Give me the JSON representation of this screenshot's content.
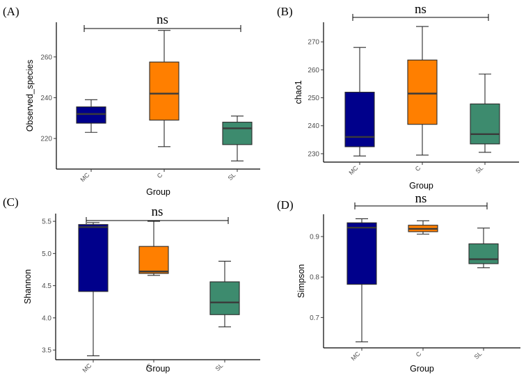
{
  "colors": {
    "MC": "#00008b",
    "C": "#ff7f00",
    "SL": "#3d8b6e"
  },
  "chart_data": [
    {
      "type": "box",
      "panel": "(A)",
      "ylabel": "Observed_species",
      "xlabel": "Group",
      "ylim": [
        205,
        277
      ],
      "yticks": [
        220,
        240,
        260
      ],
      "ytick_labels": [
        "220",
        "240",
        "260"
      ],
      "categories": [
        "MC",
        "C",
        "SL"
      ],
      "boxes": [
        {
          "group": "MC",
          "min": 223,
          "q1": 227.5,
          "median": 232,
          "q3": 235.5,
          "max": 239
        },
        {
          "group": "C",
          "min": 216,
          "q1": 229,
          "median": 242,
          "q3": 257.5,
          "max": 273
        },
        {
          "group": "SL",
          "min": 209,
          "q1": 217,
          "median": 225,
          "q3": 228,
          "max": 231
        }
      ],
      "significance": {
        "label": "ns",
        "from": "MC",
        "to": "SL"
      }
    },
    {
      "type": "box",
      "panel": "(B)",
      "ylabel": "chao1",
      "xlabel": "Group",
      "ylim": [
        227,
        277
      ],
      "yticks": [
        230,
        240,
        250,
        260,
        270
      ],
      "ytick_labels": [
        "230",
        "240",
        "250",
        "260",
        "270"
      ],
      "categories": [
        "MC",
        "C",
        "SL"
      ],
      "boxes": [
        {
          "group": "MC",
          "min": 229.2,
          "q1": 232.5,
          "median": 236,
          "q3": 252,
          "max": 268
        },
        {
          "group": "C",
          "min": 229.5,
          "q1": 240.5,
          "median": 251.5,
          "q3": 263.5,
          "max": 275.5
        },
        {
          "group": "SL",
          "min": 230.5,
          "q1": 233.5,
          "median": 237,
          "q3": 247.8,
          "max": 258.5
        }
      ],
      "significance": {
        "label": "ns",
        "from": "MC",
        "to": "SL"
      }
    },
    {
      "type": "box",
      "panel": "(C)",
      "ylabel": "Shannon",
      "xlabel": "Group",
      "ylim": [
        3.35,
        5.62
      ],
      "yticks": [
        3.5,
        4.0,
        4.5,
        5.0,
        5.5
      ],
      "ytick_labels": [
        "3.5",
        "4.0",
        "4.5",
        "5.0",
        "5.5"
      ],
      "categories": [
        "MC",
        "C",
        "SL"
      ],
      "boxes": [
        {
          "group": "MC",
          "min": 3.41,
          "q1": 4.41,
          "median": 5.41,
          "q3": 5.45,
          "max": 5.48
        },
        {
          "group": "C",
          "min": 4.66,
          "q1": 4.69,
          "median": 4.72,
          "q3": 5.11,
          "max": 5.5
        },
        {
          "group": "SL",
          "min": 3.86,
          "q1": 4.05,
          "median": 4.24,
          "q3": 4.56,
          "max": 4.88
        }
      ],
      "significance": {
        "label": "ns",
        "from": "MC",
        "to": "SL"
      }
    },
    {
      "type": "box",
      "panel": "(D)",
      "ylabel": "Simpson",
      "xlabel": "Group",
      "ylim": [
        0.625,
        0.955
      ],
      "yticks": [
        0.7,
        0.8,
        0.9
      ],
      "ytick_labels": [
        "0.7",
        "0.8",
        "0.9"
      ],
      "categories": [
        "MC",
        "C",
        "SL"
      ],
      "boxes": [
        {
          "group": "MC",
          "min": 0.64,
          "q1": 0.782,
          "median": 0.922,
          "q3": 0.934,
          "max": 0.944
        },
        {
          "group": "C",
          "min": 0.906,
          "q1": 0.912,
          "median": 0.919,
          "q3": 0.928,
          "max": 0.939
        },
        {
          "group": "SL",
          "min": 0.823,
          "q1": 0.833,
          "median": 0.844,
          "q3": 0.882,
          "max": 0.921
        }
      ],
      "significance": {
        "label": "ns",
        "from": "MC",
        "to": "SL"
      }
    }
  ]
}
